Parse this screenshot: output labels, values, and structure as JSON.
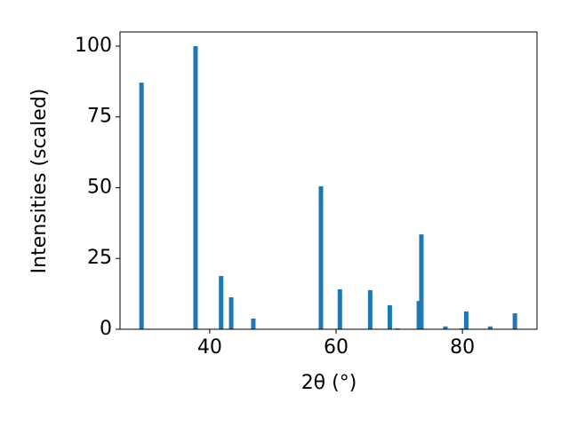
{
  "chart_data": {
    "type": "bar",
    "x_label": "2θ (°)",
    "y_label": "Intensities (scaled)",
    "x": [
      29.2,
      37.75,
      41.8,
      43.4,
      46.9,
      57.6,
      60.6,
      65.4,
      68.5,
      69.7,
      73.1,
      73.5,
      77.3,
      79.9,
      80.6,
      84.4,
      88.3
    ],
    "values": [
      87.1,
      100,
      18.8,
      11.3,
      3.8,
      50.5,
      14.1,
      13.8,
      8.5,
      0.3,
      10,
      33.5,
      1,
      0.3,
      6.3,
      1,
      5.6
    ],
    "color": "#1f77b4",
    "xlim": [
      25.8,
      91.8
    ],
    "xticks": [
      40,
      60,
      80
    ],
    "ylim": [
      0,
      105
    ],
    "yticks": [
      0,
      25,
      50,
      75,
      100
    ],
    "grid": false
  }
}
